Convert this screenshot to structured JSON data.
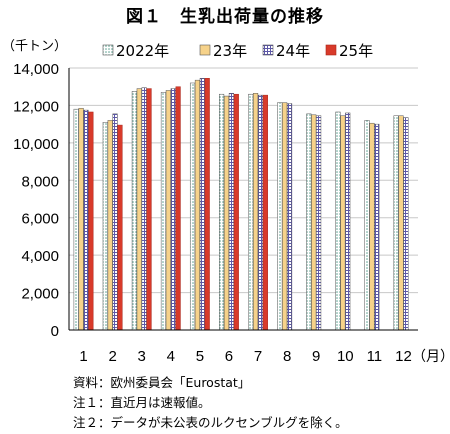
{
  "chart_data": {
    "type": "bar",
    "title": "図１　生乳出荷量の推移",
    "ylabel": "（千トン）",
    "xlabel": "",
    "x_unit": "（月）",
    "categories": [
      "1",
      "2",
      "3",
      "4",
      "5",
      "6",
      "7",
      "8",
      "9",
      "10",
      "11",
      "12"
    ],
    "ylim": [
      0,
      14000
    ],
    "yticks": [
      0,
      2000,
      4000,
      6000,
      8000,
      10000,
      12000,
      14000
    ],
    "ytick_labels": [
      "0",
      "2,000",
      "4,000",
      "6,000",
      "8,000",
      "10,000",
      "12,000",
      "14,000"
    ],
    "grid": true,
    "legend_position": "top",
    "series": [
      {
        "name": "2022年",
        "pattern": "dotted",
        "color": "#7fb8a8",
        "values": [
          11800,
          11100,
          12750,
          12700,
          13200,
          12600,
          12600,
          12150,
          11550,
          11650,
          11200,
          11450
        ]
      },
      {
        "name": "23年",
        "pattern": "solid",
        "color": "#f6d28a",
        "values": [
          11850,
          11200,
          12900,
          12800,
          13350,
          12500,
          12650,
          12150,
          11500,
          11450,
          11050,
          11450
        ]
      },
      {
        "name": "24年",
        "pattern": "grid",
        "color": "#8a86c6",
        "values": [
          11750,
          11550,
          12950,
          12900,
          13450,
          12650,
          12550,
          12100,
          11450,
          11600,
          11000,
          11350
        ]
      },
      {
        "name": "25年",
        "pattern": "solid",
        "color": "#d83a2a",
        "values": [
          11650,
          10950,
          12900,
          13000,
          13450,
          12600,
          12550,
          null,
          null,
          null,
          null,
          null
        ]
      }
    ]
  },
  "notes": {
    "source": "資料：欧州委員会「Eurostat」",
    "note1": "注１：直近月は速報値。",
    "note2": "注２：データが未公表のルクセンブルグを除く。"
  }
}
